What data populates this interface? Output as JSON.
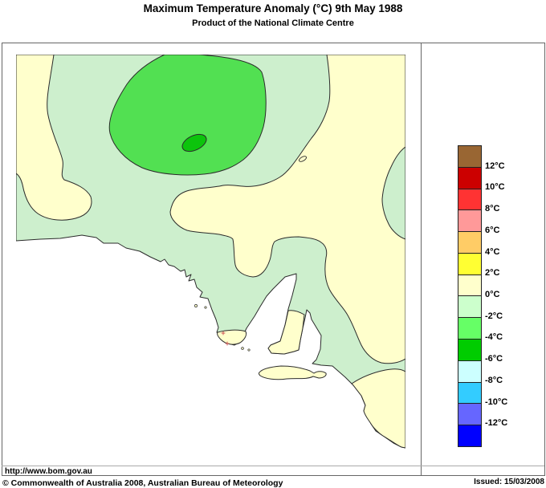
{
  "header": {
    "title": "Maximum Temperature Anomaly (°C)  9th May 1988",
    "subtitle": "Product of the National Climate Centre"
  },
  "map": {
    "region_shown": "South Australia",
    "url_label": "http://www.bom.gov.au",
    "anomaly_bands_visible": [
      {
        "range_c": "0 to 2",
        "color": "#FFFFCC",
        "areas": [
          "western border band with lower lobe",
          "north-east and east of state with lobe dipping near Port Augusta",
          "right-edge band",
          "south-east corner",
          "Eyre Peninsula tip",
          "Yorke Peninsula boot",
          "Kangaroo Island"
        ]
      },
      {
        "range_c": "-2 to 0",
        "color": "#CDEFCD",
        "areas": [
          "most of central and southern South Australia"
        ]
      },
      {
        "range_c": "-4 to -2",
        "color": "#52E052",
        "areas": [
          "large oval in the north-central interior"
        ]
      },
      {
        "range_c": "-6 to -4",
        "color": "#0CC40C",
        "areas": [
          "small core inside the north-central oval"
        ]
      }
    ]
  },
  "colors": {
    "map-cream": "#FFFFCC",
    "map-pale-green": "#CDEFCD",
    "map-green": "#52E052",
    "map-dark-green": "#0CC40C",
    "ocean": "#FFFFFF",
    "contour": "#2b2b2b",
    "frame": "#666666",
    "station-mark": "#cc5555"
  },
  "legend": {
    "entries": [
      {
        "color": "#996633",
        "label": "12°C"
      },
      {
        "color": "#CC0000",
        "label": "10°C"
      },
      {
        "color": "#FF3333",
        "label": "8°C"
      },
      {
        "color": "#FF9999",
        "label": "6°C"
      },
      {
        "color": "#FFCC66",
        "label": "4°C"
      },
      {
        "color": "#FFFF33",
        "label": "2°C"
      },
      {
        "color": "#FFFFCC",
        "label": "0°C"
      },
      {
        "color": "#CCFFCC",
        "label": "-2°C"
      },
      {
        "color": "#66FF66",
        "label": "-4°C"
      },
      {
        "color": "#00CC00",
        "label": "-6°C"
      },
      {
        "color": "#CCFFFF",
        "label": "-8°C"
      },
      {
        "color": "#33CCFF",
        "label": "-10°C"
      },
      {
        "color": "#6666FF",
        "label": "-12°C"
      },
      {
        "color": "#0000FF",
        "label": null
      }
    ]
  },
  "footer": {
    "copyright": "© Commonwealth of Australia 2008, Australian Bureau of Meteorology",
    "issued": "Issued: 15/03/2008"
  }
}
